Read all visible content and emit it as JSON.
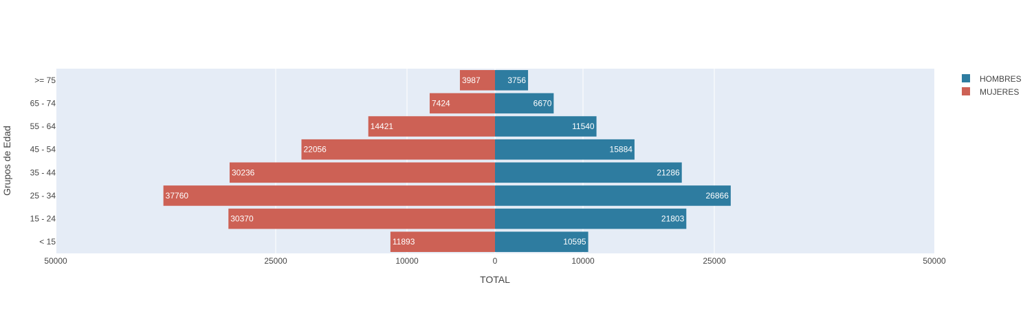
{
  "chart_data": {
    "type": "bar",
    "orientation": "horizontal",
    "categories": [
      "< 15",
      "15 - 24",
      "25 - 34",
      "35 - 44",
      "45 - 54",
      "55 - 64",
      "65 - 74",
      ">= 75"
    ],
    "series": [
      {
        "name": "HOMBRES",
        "values": [
          10595,
          21803,
          26866,
          21286,
          15884,
          11540,
          6670,
          3756
        ],
        "color": "#2e7ca0",
        "side": "right"
      },
      {
        "name": "MUJERES",
        "values": [
          11893,
          30370,
          37760,
          30236,
          22056,
          14421,
          7424,
          3987
        ],
        "color": "#cd6155",
        "side": "left"
      }
    ],
    "xlabel": "TOTAL",
    "ylabel": "Grupos de Edad",
    "xticks": [
      {
        "value": -50000,
        "label": "50000"
      },
      {
        "value": -25000,
        "label": "25000"
      },
      {
        "value": -10000,
        "label": "10000"
      },
      {
        "value": 0,
        "label": "0"
      },
      {
        "value": 10000,
        "label": "10000"
      },
      {
        "value": 25000,
        "label": "25000"
      },
      {
        "value": 50000,
        "label": "50000"
      }
    ],
    "xlim": [
      -50000,
      50000
    ],
    "grid": true,
    "legend_position": "top-right",
    "plot_background": "#e5ecf6"
  }
}
